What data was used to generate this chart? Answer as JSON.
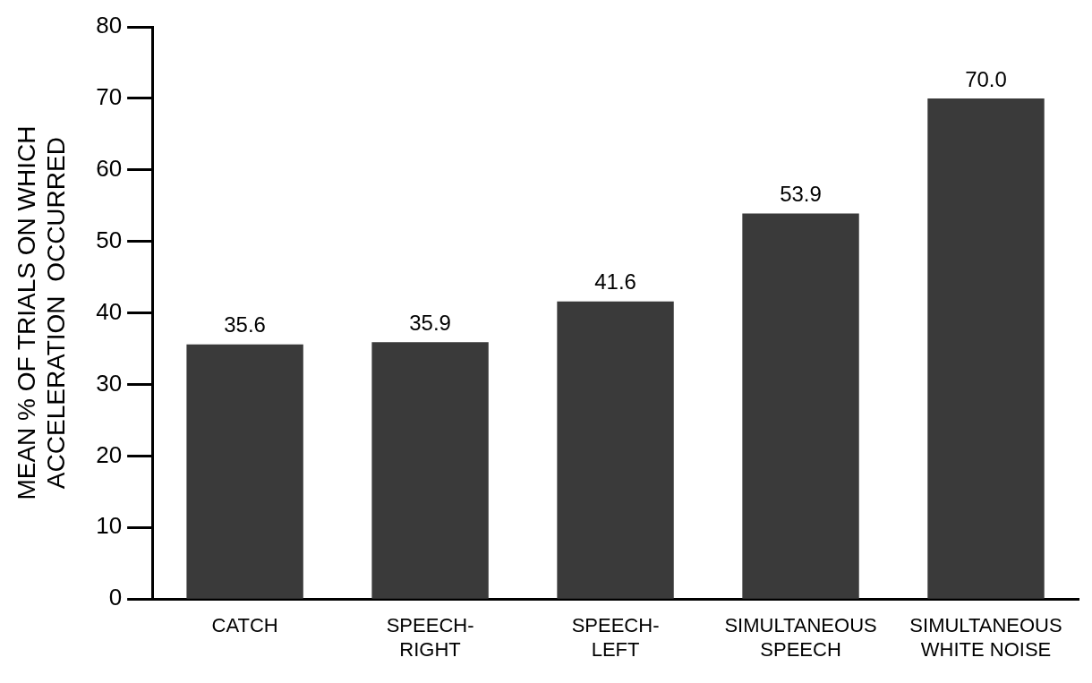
{
  "chart_data": {
    "type": "bar",
    "ylabel": "MEAN % OF TRIALS ON WHICH\nACCELERATION  OCCURRED",
    "categories": [
      "CATCH",
      "SPEECH-\nRIGHT",
      "SPEECH-\nLEFT",
      "SIMULTANEOUS\nSPEECH",
      "SIMULTANEOUS\nWHITE NOISE"
    ],
    "values": [
      35.6,
      35.9,
      41.6,
      53.9,
      70.0
    ],
    "value_labels": [
      "35.6",
      "35.9",
      "41.6",
      "53.9",
      "70.0"
    ],
    "color": "#3a3a3a",
    "ylim": [
      0,
      80
    ],
    "yticks": [
      0,
      10,
      20,
      30,
      40,
      50,
      60,
      70,
      80
    ],
    "grid": false,
    "legend": false
  }
}
